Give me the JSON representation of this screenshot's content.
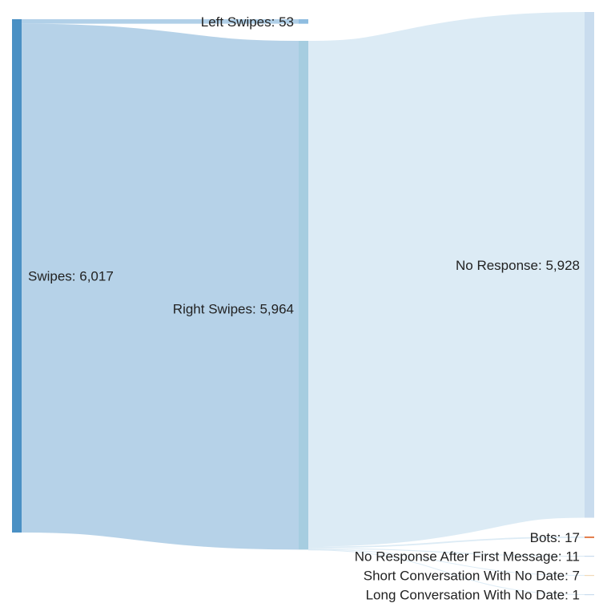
{
  "chart_data": {
    "type": "sankey",
    "nodes": [
      {
        "id": "swipes",
        "label": "Swipes: 6,017",
        "value": 6017,
        "color": "#4a90c4"
      },
      {
        "id": "left",
        "label": "Left Swipes: 53",
        "value": 53,
        "color": "#8fbde0"
      },
      {
        "id": "right",
        "label": "Right Swipes: 5,964",
        "value": 5964,
        "color": "#a6cde0"
      },
      {
        "id": "noresp",
        "label": "No Response: 5,928",
        "value": 5928,
        "color": "#c9dcee"
      },
      {
        "id": "bots",
        "label": "Bots: 17",
        "value": 17,
        "color": "#e0703a"
      },
      {
        "id": "nrafm",
        "label": "No Response After First Message: 11",
        "value": 11,
        "color": "#c9dcee"
      },
      {
        "id": "short",
        "label": "Short Conversation With No Date: 7",
        "value": 7,
        "color": "#f0d9b8"
      },
      {
        "id": "long",
        "label": "Long Conversation With No Date: 1",
        "value": 1,
        "color": "#c9dcee"
      }
    ],
    "links": [
      {
        "source": "swipes",
        "target": "left",
        "value": 53,
        "color": "#a9cbe6"
      },
      {
        "source": "swipes",
        "target": "right",
        "value": 5964,
        "color": "#aecde6"
      },
      {
        "source": "right",
        "target": "noresp",
        "value": 5928,
        "color": "#d8e9f4"
      },
      {
        "source": "right",
        "target": "bots",
        "value": 17,
        "color": "#d8e9f4"
      },
      {
        "source": "right",
        "target": "nrafm",
        "value": 11,
        "color": "#d8e9f4"
      },
      {
        "source": "right",
        "target": "short",
        "value": 7,
        "color": "#d8e9f4"
      },
      {
        "source": "right",
        "target": "long",
        "value": 1,
        "color": "#d8e9f4"
      }
    ]
  }
}
